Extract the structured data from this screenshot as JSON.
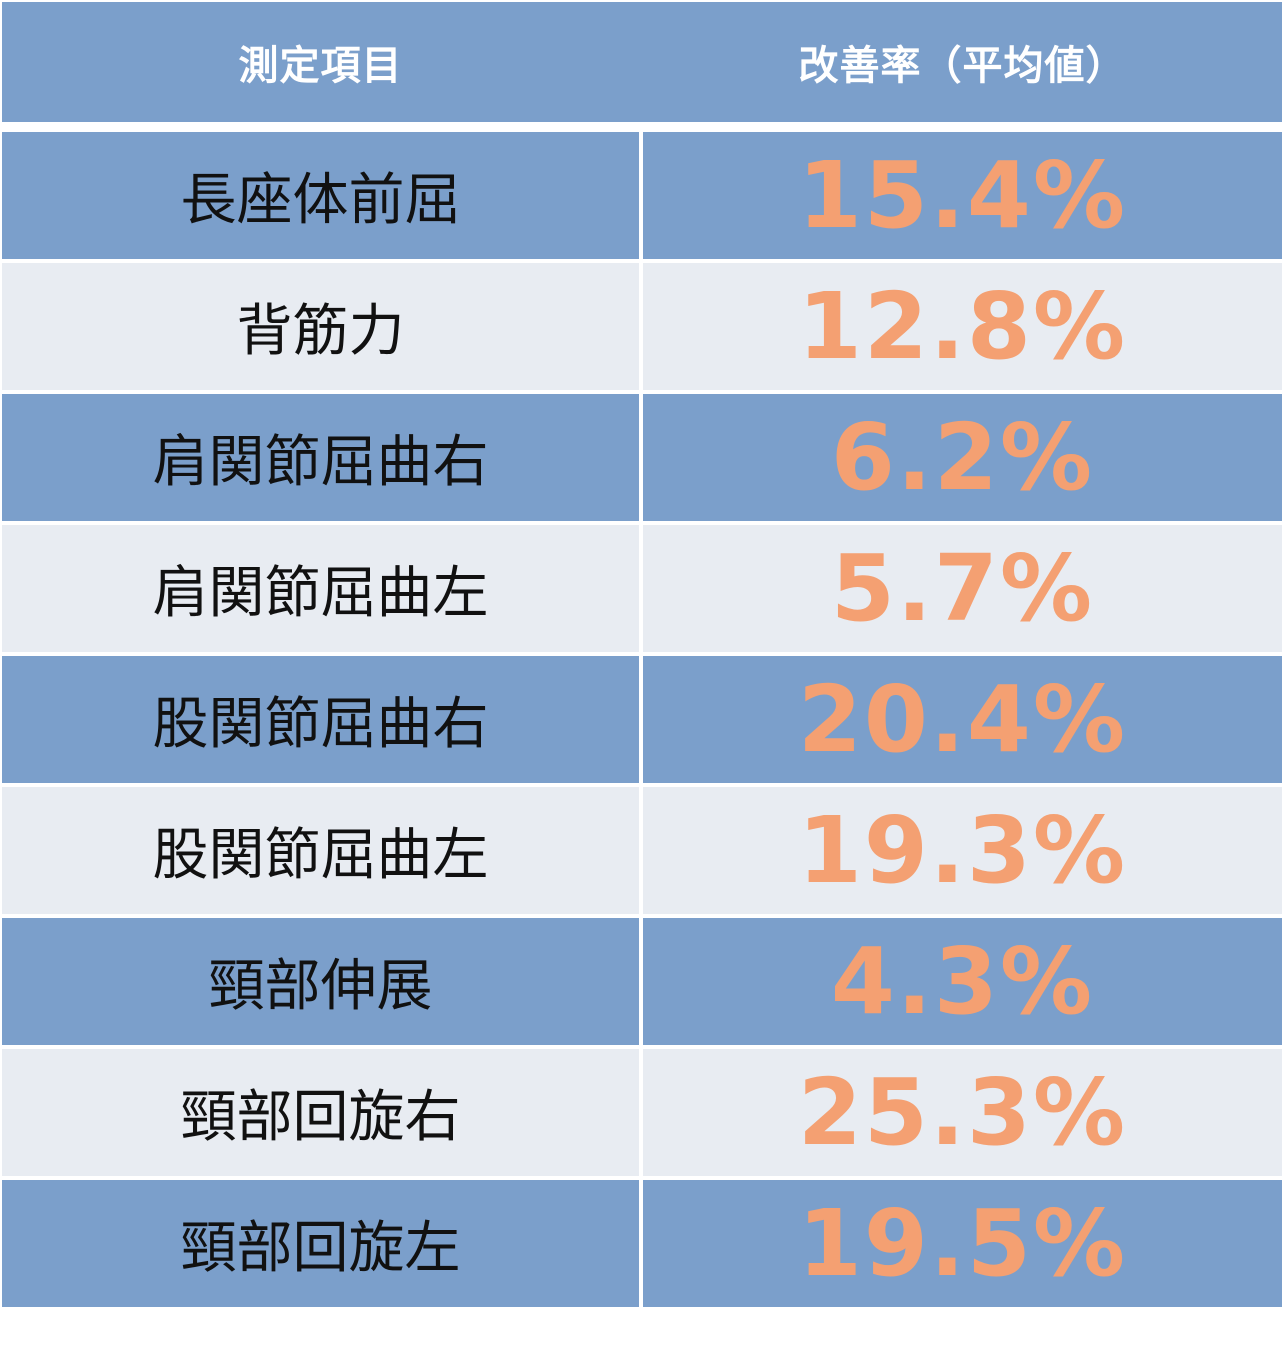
{
  "header": {
    "col_item": "測定項目",
    "col_rate": "改善率（平均値）"
  },
  "rows": [
    {
      "item": "長座体前屈",
      "rate": "15.4%"
    },
    {
      "item": "背筋力",
      "rate": "12.8%"
    },
    {
      "item": "肩関節屈曲右",
      "rate": "6.2%"
    },
    {
      "item": "肩関節屈曲左",
      "rate": "5.7%"
    },
    {
      "item": "股関節屈曲右",
      "rate": "20.4%"
    },
    {
      "item": "股関節屈曲左",
      "rate": "19.3%"
    },
    {
      "item": "頸部伸展",
      "rate": "4.3%"
    },
    {
      "item": "頸部回旋右",
      "rate": "25.3%"
    },
    {
      "item": "頸部回旋左",
      "rate": "19.5%"
    }
  ],
  "colors": {
    "header_bg": "#7b9fcb",
    "row_blue": "#7b9fcb",
    "row_light": "#e8ecf2",
    "value_text": "#f4a072"
  }
}
